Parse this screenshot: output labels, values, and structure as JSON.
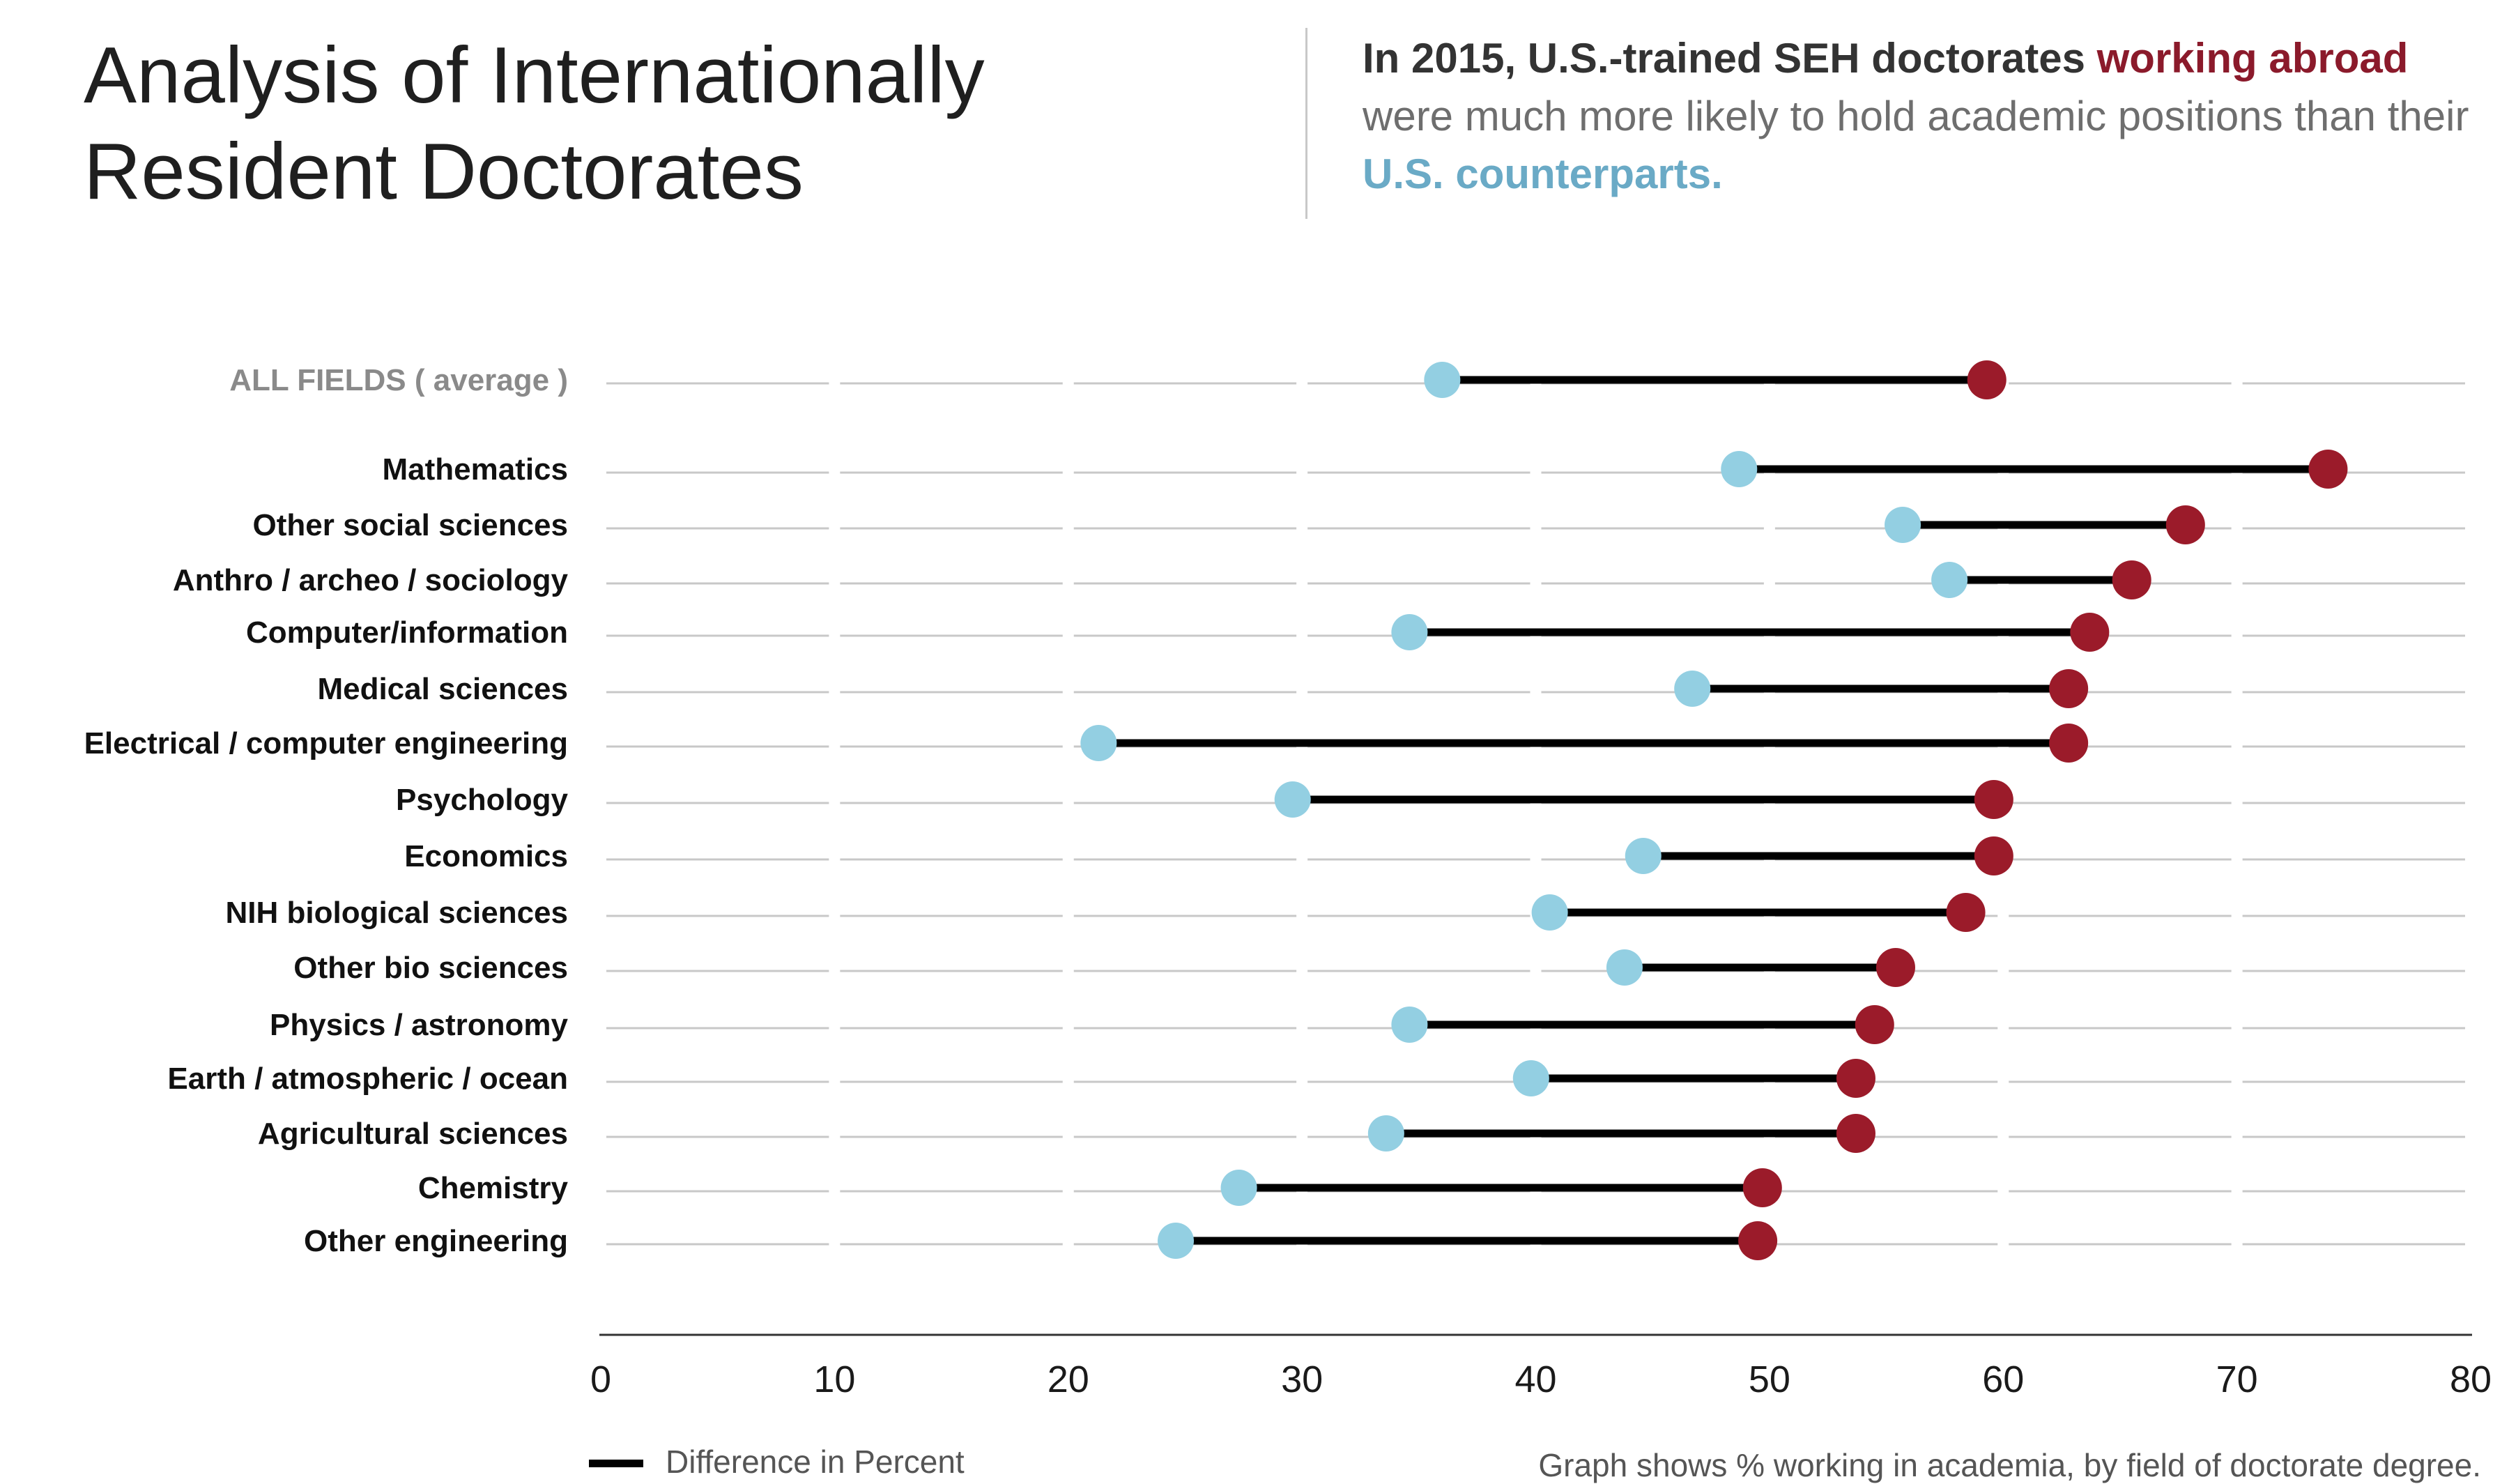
{
  "header": {
    "title_line1": "Analysis of Internationally",
    "title_line2": "Resident Doctorates",
    "subtitle_part1": "In 2015, U.S.-trained SEH doctorates ",
    "subtitle_part2": "working abroad",
    "subtitle_part3": " were much more likely to hold academic positions than their ",
    "subtitle_part4": "U.S. counterparts."
  },
  "colors": {
    "abroad": "#9b1b2a",
    "us": "#93cfe2",
    "connector": "#000000",
    "grid": "#c8c8c8",
    "axis": "#333333",
    "label_average": "#8a8a8a",
    "label": "#111111"
  },
  "chart_data": {
    "type": "dumbbell",
    "xlim": [
      0,
      80
    ],
    "xticks": [
      "0",
      "10",
      "20",
      "30",
      "40",
      "50",
      "60",
      "70",
      "80"
    ],
    "grid": true,
    "series": [
      {
        "name": "U.S. counterparts",
        "color": "#93cfe2"
      },
      {
        "name": "working abroad",
        "color": "#9b1b2a"
      }
    ],
    "rows": [
      {
        "label": "ALL FIELDS ( average )",
        "us": 36,
        "abroad": 59.3,
        "average": true
      },
      {
        "label": "Mathematics",
        "us": 48.7,
        "abroad": 73.9
      },
      {
        "label": "Other social sciences",
        "us": 55.7,
        "abroad": 67.8
      },
      {
        "label": "Anthro / archeo / sociology",
        "us": 57.7,
        "abroad": 65.5
      },
      {
        "label": "Computer/information",
        "us": 34.6,
        "abroad": 63.7
      },
      {
        "label": "Medical sciences",
        "us": 46.7,
        "abroad": 62.8
      },
      {
        "label": "Electrical / computer engineering",
        "us": 21.3,
        "abroad": 62.8
      },
      {
        "label": "Psychology",
        "us": 29.6,
        "abroad": 59.6
      },
      {
        "label": "Economics",
        "us": 44.6,
        "abroad": 59.6
      },
      {
        "label": "NIH biological sciences",
        "us": 40.6,
        "abroad": 58.4
      },
      {
        "label": "Other bio sciences",
        "us": 43.8,
        "abroad": 55.4
      },
      {
        "label": "Physics / astronomy",
        "us": 34.6,
        "abroad": 54.5
      },
      {
        "label": "Earth / atmospheric / ocean",
        "us": 39.8,
        "abroad": 53.7
      },
      {
        "label": "Agricultural sciences",
        "us": 33.6,
        "abroad": 53.7
      },
      {
        "label": "Chemistry",
        "us": 27.3,
        "abroad": 49.7
      },
      {
        "label": "Other engineering",
        "us": 24.6,
        "abroad": 49.5
      }
    ],
    "legend": {
      "label": "Difference in Percent",
      "placement": "bottom-left"
    },
    "footnote": "Graph shows % working in academia, by field of doctorate degree."
  }
}
